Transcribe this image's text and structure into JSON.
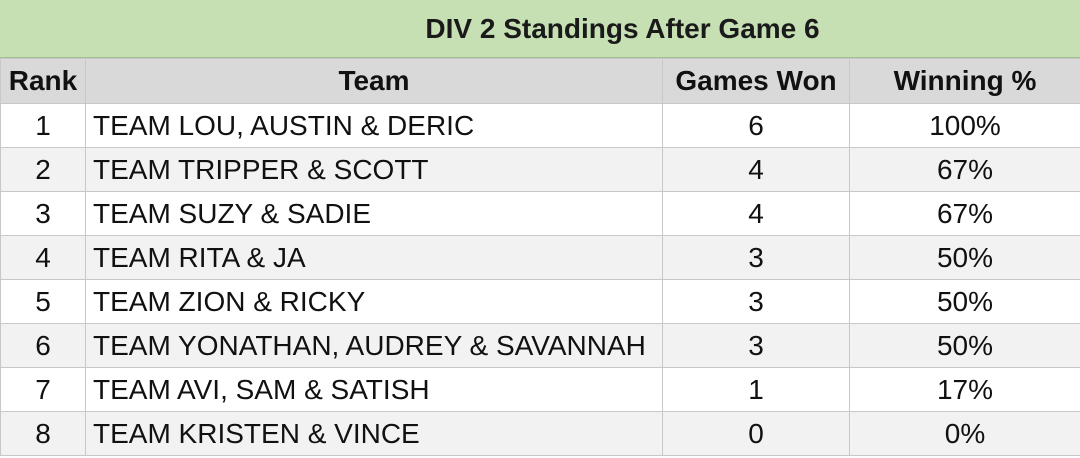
{
  "title": "DIV 2 Standings After Game 6",
  "headers": {
    "rank": "Rank",
    "team": "Team",
    "games_won": "Games Won",
    "winning_pct": "Winning %"
  },
  "rows": [
    {
      "rank": "1",
      "team": "TEAM LOU, AUSTIN & DERIC",
      "games_won": "6",
      "winning_pct": "100%"
    },
    {
      "rank": "2",
      "team": "TEAM TRIPPER & SCOTT",
      "games_won": "4",
      "winning_pct": "67%"
    },
    {
      "rank": "3",
      "team": "TEAM SUZY & SADIE",
      "games_won": "4",
      "winning_pct": "67%"
    },
    {
      "rank": "4",
      "team": "TEAM RITA & JA",
      "games_won": "3",
      "winning_pct": "50%"
    },
    {
      "rank": "5",
      "team": "TEAM ZION & RICKY",
      "games_won": "3",
      "winning_pct": "50%"
    },
    {
      "rank": "6",
      "team": "TEAM YONATHAN, AUDREY & SAVANNAH",
      "games_won": "3",
      "winning_pct": "50%"
    },
    {
      "rank": "7",
      "team": "TEAM AVI, SAM & SATISH",
      "games_won": "1",
      "winning_pct": "17%"
    },
    {
      "rank": "8",
      "team": "TEAM KRISTEN & VINCE",
      "games_won": "0",
      "winning_pct": "0%"
    }
  ],
  "colors": {
    "title_background": "#c6e0b4",
    "header_background": "#d9d9d9",
    "stripe_background": "#f2f2f2"
  }
}
